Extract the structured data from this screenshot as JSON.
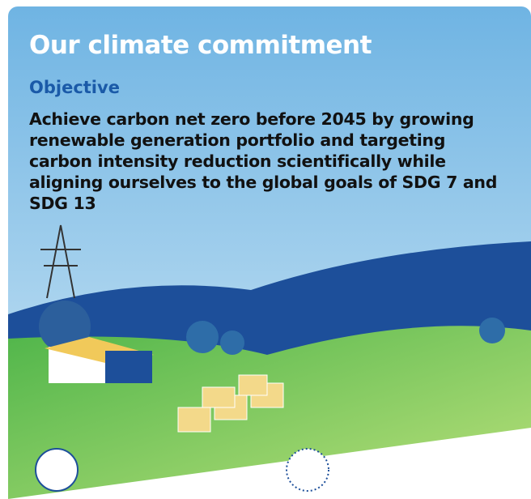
{
  "header": {
    "title": "Our climate commitment"
  },
  "section": {
    "heading": "Objective",
    "text": "Achieve carbon net zero before 2045 by growing renewable generation portfolio and targeting carbon intensity reduction scientifically while aligning ourselves to the global goals of SDG 7 and SDG 13"
  }
}
